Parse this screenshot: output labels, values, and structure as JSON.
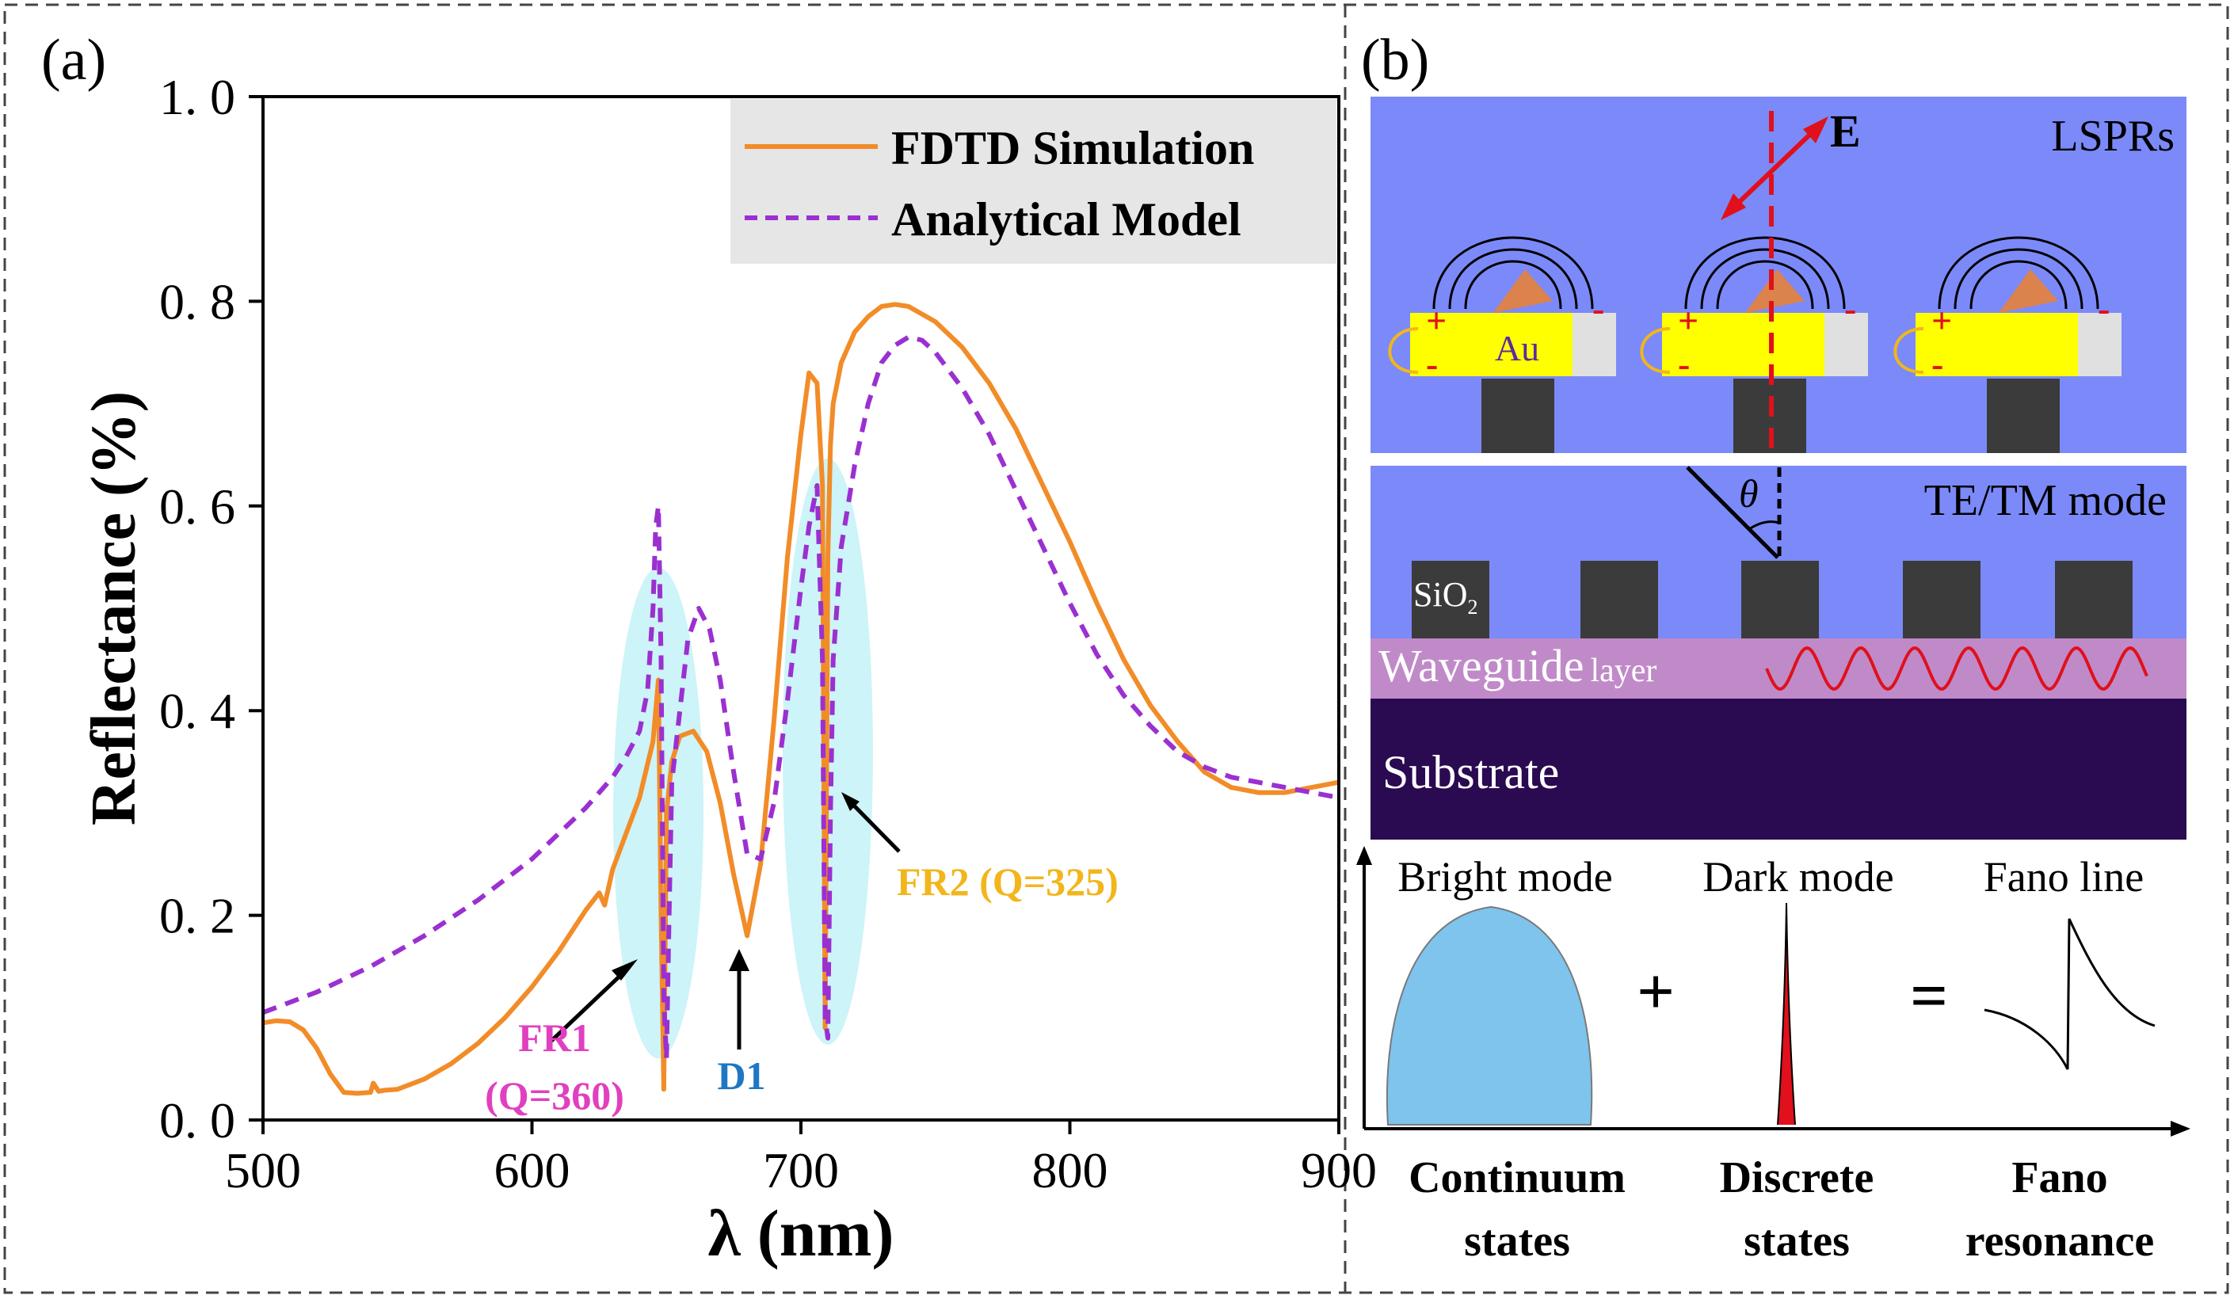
{
  "panel_a": {
    "label": "(a)",
    "chart_data": {
      "type": "line",
      "title": "",
      "xlabel": "λ (nm)",
      "ylabel": "Reflectance (%)",
      "xlim": [
        500,
        900
      ],
      "ylim": [
        0,
        1.0
      ],
      "xticks": [
        500,
        600,
        700,
        800,
        900
      ],
      "xtick_labels": [
        "500",
        "600",
        "700",
        "800",
        "900"
      ],
      "yticks": [
        0,
        0.2,
        0.4,
        0.6,
        0.8,
        1.0
      ],
      "ytick_labels": [
        "0. 0",
        "0. 2",
        "0. 4",
        "0. 6",
        "0. 8",
        "1. 0"
      ],
      "legend_position": "top-right",
      "series": [
        {
          "name": "FDTD Simulation",
          "color": "#f28c28",
          "style": "solid",
          "x": [
            500,
            505,
            510,
            515,
            520,
            525,
            530,
            535,
            540,
            541,
            543,
            545,
            550,
            560,
            570,
            580,
            590,
            600,
            610,
            620,
            625,
            627,
            630,
            640,
            645,
            647,
            648,
            649,
            650,
            652,
            655,
            660,
            665,
            670,
            675,
            680,
            685,
            690,
            695,
            700,
            703,
            706,
            708,
            709,
            710,
            711,
            712,
            715,
            720,
            725,
            730,
            735,
            740,
            750,
            760,
            770,
            780,
            790,
            800,
            810,
            820,
            830,
            840,
            850,
            860,
            870,
            880,
            890,
            900
          ],
          "y": [
            0.095,
            0.097,
            0.096,
            0.088,
            0.07,
            0.045,
            0.027,
            0.026,
            0.027,
            0.036,
            0.028,
            0.029,
            0.03,
            0.04,
            0.055,
            0.075,
            0.1,
            0.13,
            0.165,
            0.205,
            0.222,
            0.21,
            0.245,
            0.315,
            0.37,
            0.43,
            0.2,
            0.03,
            0.3,
            0.35,
            0.375,
            0.38,
            0.36,
            0.31,
            0.24,
            0.18,
            0.25,
            0.39,
            0.55,
            0.67,
            0.73,
            0.72,
            0.62,
            0.09,
            0.55,
            0.66,
            0.7,
            0.74,
            0.77,
            0.785,
            0.795,
            0.797,
            0.795,
            0.78,
            0.755,
            0.72,
            0.675,
            0.62,
            0.565,
            0.505,
            0.45,
            0.405,
            0.37,
            0.34,
            0.325,
            0.32,
            0.32,
            0.325,
            0.33
          ]
        },
        {
          "name": "Analytical Model",
          "color": "#9b30d0",
          "style": "dashed",
          "x": [
            500,
            520,
            540,
            560,
            580,
            600,
            610,
            620,
            630,
            635,
            640,
            643,
            645,
            646,
            647,
            648,
            649,
            650,
            651,
            652,
            655,
            658,
            662,
            666,
            670,
            675,
            680,
            685,
            690,
            695,
            700,
            703,
            706,
            708,
            709,
            710,
            711,
            712,
            715,
            720,
            725,
            730,
            735,
            740,
            745,
            750,
            760,
            770,
            780,
            790,
            800,
            810,
            820,
            830,
            840,
            850,
            860,
            870,
            880,
            890,
            900
          ],
          "y": [
            0.105,
            0.125,
            0.15,
            0.18,
            0.215,
            0.255,
            0.28,
            0.305,
            0.335,
            0.355,
            0.38,
            0.42,
            0.5,
            0.58,
            0.6,
            0.45,
            0.12,
            0.06,
            0.2,
            0.33,
            0.4,
            0.47,
            0.5,
            0.48,
            0.43,
            0.34,
            0.26,
            0.255,
            0.31,
            0.41,
            0.52,
            0.58,
            0.62,
            0.45,
            0.1,
            0.08,
            0.3,
            0.45,
            0.56,
            0.64,
            0.7,
            0.74,
            0.757,
            0.765,
            0.762,
            0.75,
            0.715,
            0.67,
            0.615,
            0.56,
            0.505,
            0.455,
            0.415,
            0.385,
            0.36,
            0.345,
            0.335,
            0.33,
            0.325,
            0.32,
            0.315
          ]
        }
      ],
      "highlights": [
        {
          "label": "FR1",
          "sublabel": "(Q=360)",
          "x": 647,
          "color": "#e040c0"
        },
        {
          "label": "D1",
          "sublabel": "",
          "x": 680,
          "color": "#1f77c4"
        },
        {
          "label": "FR2",
          "sublabel": "(Q=325)",
          "x": 709,
          "text": "FR2 (Q=325)",
          "color": "#f2b61c"
        }
      ]
    }
  },
  "panel_b": {
    "label": "(b)",
    "top": {
      "field_label": "E",
      "region_label": "LSPRs",
      "material_label": "Au",
      "plus": "+",
      "minus": "-"
    },
    "middle": {
      "mode_label": "TE/TM mode",
      "angle_label": "θ",
      "oxide_label": "SiO",
      "oxide_sub": "2",
      "waveguide_label": "Waveguide",
      "waveguide_suffix": "layer",
      "substrate_label": "Substrate"
    },
    "bottom": {
      "bright_mode": "Bright mode",
      "dark_mode": "Dark mode",
      "fano_line": "Fano line",
      "plus_sign": "+",
      "equals_sign": "=",
      "continuum_1": "Continuum",
      "continuum_2": "states",
      "discrete_1": "Discrete",
      "discrete_2": "states",
      "fano_1": "Fano",
      "fano_2": "resonance"
    },
    "colors": {
      "background_blue": "#7b8af8",
      "waveguide": "#c08ac8",
      "substrate": "#2a0a50",
      "gold": "#ffff00",
      "pillar": "#3b3b3b"
    }
  }
}
